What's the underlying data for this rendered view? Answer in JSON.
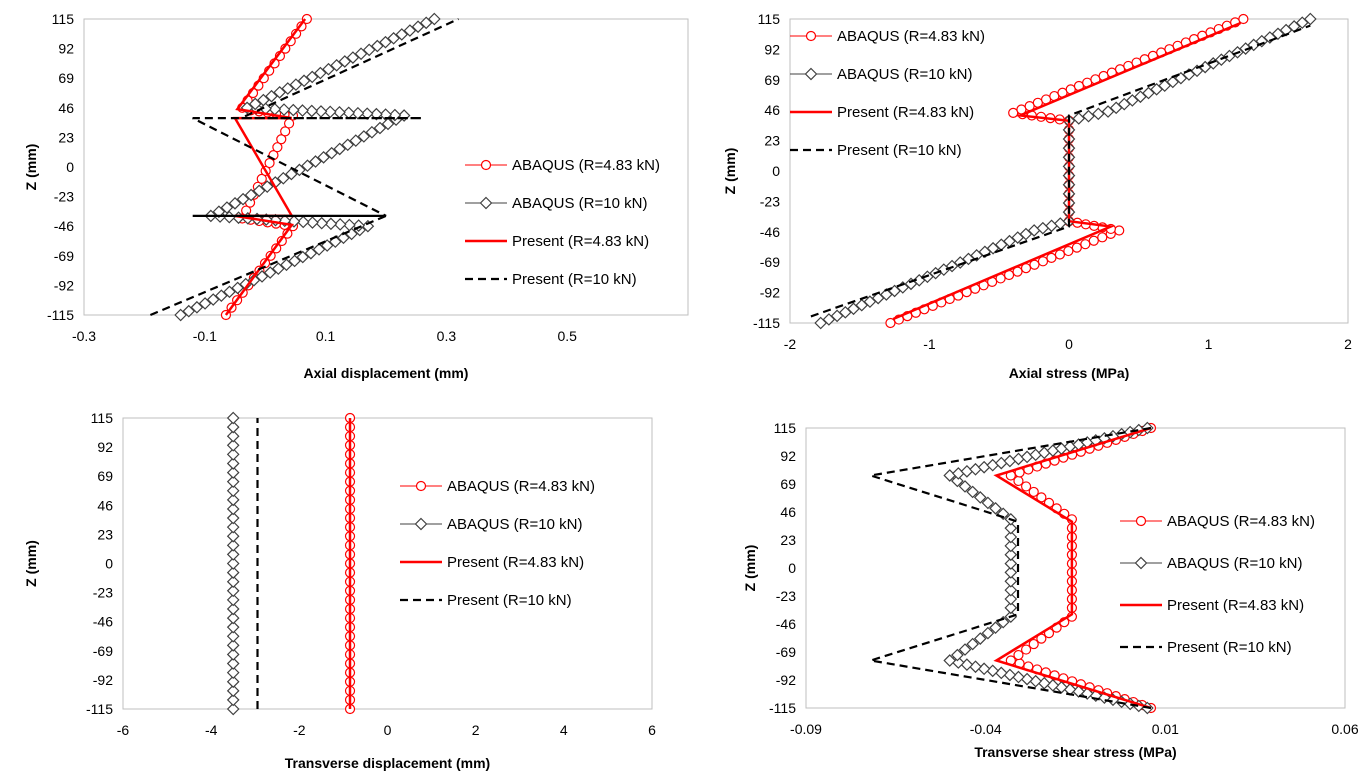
{
  "chart_data": [
    {
      "id": "axial-displacement",
      "type": "line",
      "xlabel": "Axial displacement (mm)",
      "ylabel": "Z (mm)",
      "xlim": [
        -0.3,
        0.7
      ],
      "ylim": [
        -115,
        115
      ],
      "xticks": [
        -0.3,
        -0.1,
        0.1,
        0.3,
        0.5
      ],
      "xtick_labels": [
        "-0.3",
        "-0.1",
        "0.1",
        "0.3",
        "0.5"
      ],
      "yticks": [
        115,
        92,
        69,
        46,
        23,
        0,
        -23,
        -46,
        -69,
        -92,
        -115
      ],
      "ytick_labels": [
        "115",
        "92",
        "69",
        "46",
        "23",
        "0",
        "-23",
        "-46",
        "-69",
        "-92",
        "-115"
      ],
      "grid": false,
      "legend_position": "right",
      "series": [
        {
          "name": "ABAQUS (R=4.83 kN)",
          "color": "#ff0000",
          "style": "marker-circle",
          "x": [
            -0.065,
            0.046,
            -0.038,
            0.046,
            -0.038,
            0.069,
            -0.024
          ],
          "y": [
            -115,
            -46,
            -40,
            40,
            46,
            115,
            44
          ]
        },
        {
          "name": "ABAQUS (R=10 kN)",
          "color": "#404040",
          "style": "marker-diamond",
          "x": [
            -0.14,
            0.17,
            -0.09,
            0.23,
            -0.03,
            0.28
          ],
          "y": [
            -115,
            -46,
            -38,
            40,
            46,
            115
          ]
        },
        {
          "name": "Present (R=4.83 kN)",
          "color": "#ff0000",
          "style": "solid",
          "x": [
            -0.065,
            0.044,
            -0.05,
            0.044,
            -0.05,
            0.044,
            -0.046,
            0.066
          ],
          "y": [
            -115,
            -45,
            -38,
            -38,
            38,
            38,
            45,
            115
          ]
        },
        {
          "name": "Present (R=10 kN)",
          "color": "#000000",
          "style": "dashed",
          "x": [
            -0.19,
            0.2,
            -0.12,
            0.2,
            -0.12,
            0.26,
            -0.04,
            0.32
          ],
          "y": [
            -115,
            -38,
            -38,
            -38,
            38,
            38,
            38,
            115
          ]
        }
      ]
    },
    {
      "id": "axial-stress",
      "type": "line",
      "xlabel": "Axial stress (MPa)",
      "ylabel": "Z (mm)",
      "xlim": [
        -2,
        2
      ],
      "ylim": [
        -115,
        115
      ],
      "xticks": [
        -2,
        -1,
        0,
        1,
        2
      ],
      "xtick_labels": [
        "-2",
        "-1",
        "0",
        "1",
        "2"
      ],
      "yticks": [
        115,
        92,
        69,
        46,
        23,
        0,
        -23,
        -46,
        -69,
        -92,
        -115
      ],
      "ytick_labels": [
        "115",
        "92",
        "69",
        "46",
        "23",
        "0",
        "-23",
        "-46",
        "-69",
        "-92",
        "-115"
      ],
      "grid": false,
      "legend_position": "top-left",
      "series": [
        {
          "name": "ABAQUS (R=4.83 kN)",
          "color": "#ff0000",
          "style": "marker-circle",
          "x": [
            -1.28,
            0.36,
            0,
            0,
            -0.4,
            1.25
          ],
          "y": [
            -115,
            -45,
            -38,
            38,
            44,
            115
          ]
        },
        {
          "name": "ABAQUS (R=10 kN)",
          "color": "#404040",
          "style": "marker-diamond",
          "x": [
            -1.78,
            -0.25,
            0,
            0,
            0.28,
            1.73
          ],
          "y": [
            -115,
            -45,
            -38,
            38,
            45,
            115
          ]
        },
        {
          "name": "Present (R=4.83 kN)",
          "color": "#ff0000",
          "style": "solid",
          "x": [
            -1.26,
            0.3,
            0,
            0,
            -0.35,
            1.23
          ],
          "y": [
            -112,
            -42,
            -38,
            38,
            42,
            112
          ]
        },
        {
          "name": "Present (R=10 kN)",
          "color": "#000000",
          "style": "dashed",
          "x": [
            -1.85,
            0,
            0,
            1.73
          ],
          "y": [
            -110,
            -42,
            42,
            110
          ]
        }
      ]
    },
    {
      "id": "transverse-displacement",
      "type": "line",
      "xlabel": "Transverse displacement (mm)",
      "ylabel": "Z (mm)",
      "xlim": [
        -6,
        6
      ],
      "ylim": [
        -115,
        115
      ],
      "xticks": [
        -6,
        -4,
        -2,
        0,
        2,
        4,
        6
      ],
      "xtick_labels": [
        "-6",
        "-4",
        "-2",
        "0",
        "2",
        "4",
        "6"
      ],
      "yticks": [
        115,
        92,
        69,
        46,
        23,
        0,
        -23,
        -46,
        -69,
        -92,
        -115
      ],
      "ytick_labels": [
        "115",
        "92",
        "69",
        "46",
        "23",
        "0",
        "-23",
        "-46",
        "-69",
        "-92",
        "-115"
      ],
      "grid": false,
      "legend_position": "right",
      "series": [
        {
          "name": "ABAQUS (R=4.83 kN)",
          "color": "#ff0000",
          "style": "marker-circle",
          "x": [
            -0.85,
            -0.85
          ],
          "y": [
            -115,
            115
          ]
        },
        {
          "name": "ABAQUS (R=10 kN)",
          "color": "#404040",
          "style": "marker-diamond",
          "x": [
            -3.5,
            -3.5
          ],
          "y": [
            -115,
            115
          ]
        },
        {
          "name": "Present (R=4.83 kN)",
          "color": "#ff0000",
          "style": "solid",
          "x": [
            -0.85,
            -0.85
          ],
          "y": [
            -115,
            115
          ]
        },
        {
          "name": "Present (R=10 kN)",
          "color": "#000000",
          "style": "dashed",
          "x": [
            -2.95,
            -2.95
          ],
          "y": [
            -115,
            115
          ]
        }
      ]
    },
    {
      "id": "transverse-shear-stress",
      "type": "line",
      "xlabel": "Transverse shear stress (MPa)",
      "ylabel": "Z (mm)",
      "xlim": [
        -0.09,
        0.06
      ],
      "ylim": [
        -115,
        115
      ],
      "xticks": [
        -0.09,
        -0.04,
        0.01,
        0.06
      ],
      "xtick_labels": [
        "-0.09",
        "-0.04",
        "0.01",
        "0.06"
      ],
      "yticks": [
        115,
        92,
        69,
        46,
        23,
        0,
        -23,
        -46,
        -69,
        -92,
        -115
      ],
      "ytick_labels": [
        "115",
        "92",
        "69",
        "46",
        "23",
        "0",
        "-23",
        "-46",
        "-69",
        "-92",
        "-115"
      ],
      "grid": false,
      "legend_position": "right",
      "series": [
        {
          "name": "ABAQUS (R=4.83 kN)",
          "color": "#ff0000",
          "style": "marker-circle",
          "x": [
            0.006,
            -0.033,
            -0.016,
            -0.016,
            -0.033,
            0.006
          ],
          "y": [
            -115,
            -76,
            -40,
            40,
            76,
            115
          ]
        },
        {
          "name": "ABAQUS (R=10 kN)",
          "color": "#404040",
          "style": "marker-diamond",
          "x": [
            0.005,
            -0.05,
            -0.033,
            -0.033,
            -0.05,
            0.005
          ],
          "y": [
            -115,
            -76,
            -40,
            40,
            76,
            115
          ]
        },
        {
          "name": "Present (R=4.83 kN)",
          "color": "#ff0000",
          "style": "solid",
          "x": [
            0.006,
            -0.037,
            -0.016,
            -0.016,
            -0.037,
            0.006
          ],
          "y": [
            -115,
            -76,
            -38,
            38,
            76,
            115
          ]
        },
        {
          "name": "Present (R=10 kN)",
          "color": "#000000",
          "style": "dashed",
          "x": [
            0.006,
            -0.072,
            -0.031,
            -0.031,
            -0.072,
            0.006
          ],
          "y": [
            -115,
            -76,
            -38,
            38,
            76,
            115
          ]
        }
      ]
    }
  ]
}
